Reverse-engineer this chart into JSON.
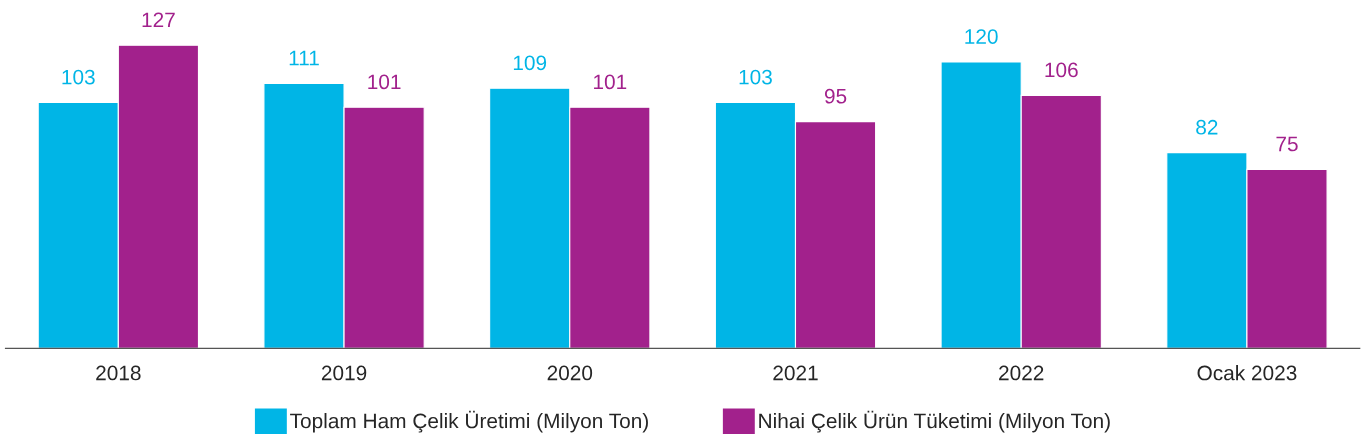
{
  "chart_data": {
    "type": "bar",
    "categories": [
      "2018",
      "2019",
      "2020",
      "2021",
      "2022",
      "Ocak 2023"
    ],
    "series": [
      {
        "name": "Toplam Ham Çelik Üretimi (Milyon Ton)",
        "color": "#00b5e6",
        "values": [
          103,
          111,
          109,
          103,
          120,
          82
        ]
      },
      {
        "name": "Nihai Çelik Ürün Tüketimi (Milyon Ton)",
        "color": "#a2218c",
        "values": [
          127,
          101,
          101,
          95,
          106,
          75
        ]
      }
    ],
    "tick_labels": "x",
    "data_labels": true,
    "legend": "bottom",
    "grid": false
  }
}
